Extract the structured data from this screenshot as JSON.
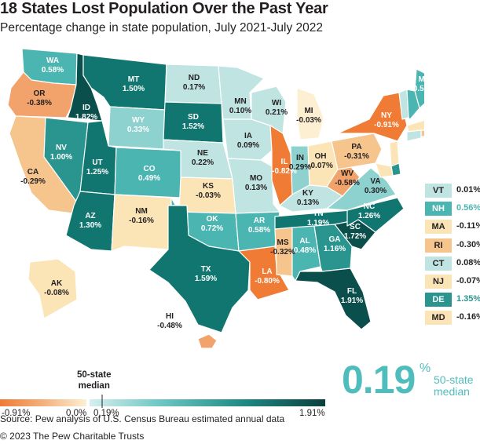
{
  "title": "18 States Lost Population Over the Past Year",
  "subtitle": "Percentage change in state population, July 2021-July 2022",
  "colors": {
    "orange_dark": "#ef7b34",
    "orange_mid": "#f2a36b",
    "orange_light": "#f6c48d",
    "cream": "#fbe5b7",
    "cream_pale": "#fdf0d2",
    "teal_pale": "#bfe4e2",
    "teal_light": "#8dd2cf",
    "teal_mid": "#4bb5b1",
    "teal": "#2a948f",
    "teal_dark": "#127670",
    "teal_darkest": "#0a4f4c",
    "median_accent": "#4fbdbb"
  },
  "states": [
    {
      "abbr": "WA",
      "value": "0.58%"
    },
    {
      "abbr": "OR",
      "value": "-0.38%"
    },
    {
      "abbr": "CA",
      "value": "-0.29%"
    },
    {
      "abbr": "ID",
      "value": "1.82%"
    },
    {
      "abbr": "MT",
      "value": "1.50%"
    },
    {
      "abbr": "NV",
      "value": "1.00%"
    },
    {
      "abbr": "UT",
      "value": "1.25%"
    },
    {
      "abbr": "WY",
      "value": "0.33%"
    },
    {
      "abbr": "AZ",
      "value": "1.30%"
    },
    {
      "abbr": "CO",
      "value": "0.49%"
    },
    {
      "abbr": "NM",
      "value": "-0.16%"
    },
    {
      "abbr": "ND",
      "value": "0.17%"
    },
    {
      "abbr": "SD",
      "value": "1.52%"
    },
    {
      "abbr": "NE",
      "value": "0.22%"
    },
    {
      "abbr": "KS",
      "value": "-0.03%"
    },
    {
      "abbr": "OK",
      "value": "0.72%"
    },
    {
      "abbr": "TX",
      "value": "1.59%"
    },
    {
      "abbr": "MN",
      "value": "0.10%"
    },
    {
      "abbr": "IA",
      "value": "0.09%"
    },
    {
      "abbr": "MO",
      "value": "0.13%"
    },
    {
      "abbr": "AR",
      "value": "0.58%"
    },
    {
      "abbr": "LA",
      "value": "-0.80%"
    },
    {
      "abbr": "WI",
      "value": "0.21%"
    },
    {
      "abbr": "IL",
      "value": "-0.82%"
    },
    {
      "abbr": "MI",
      "value": "-0.03%"
    },
    {
      "abbr": "IN",
      "value": "0.29%"
    },
    {
      "abbr": "OH",
      "value": "-0.07%"
    },
    {
      "abbr": "KY",
      "value": "0.13%"
    },
    {
      "abbr": "TN",
      "value": "1.19%"
    },
    {
      "abbr": "MS",
      "value": "-0.32%"
    },
    {
      "abbr": "AL",
      "value": "0.48%"
    },
    {
      "abbr": "GA",
      "value": "1.16%"
    },
    {
      "abbr": "FL",
      "value": "1.91%"
    },
    {
      "abbr": "SC",
      "value": "1.72%"
    },
    {
      "abbr": "NC",
      "value": "1.26%"
    },
    {
      "abbr": "VA",
      "value": "0.30%"
    },
    {
      "abbr": "WV",
      "value": "-0.58%"
    },
    {
      "abbr": "PA",
      "value": "-0.31%"
    },
    {
      "abbr": "NY",
      "value": "-0.91%"
    },
    {
      "abbr": "ME",
      "value": "0.59%"
    },
    {
      "abbr": "AK",
      "value": "-0.08%"
    },
    {
      "abbr": "HI",
      "value": "-0.48%"
    }
  ],
  "small_states": [
    {
      "abbr": "VT",
      "value": "0.01%"
    },
    {
      "abbr": "NH",
      "value": "0.56%"
    },
    {
      "abbr": "MA",
      "value": "-0.11%"
    },
    {
      "abbr": "RI",
      "value": "-0.30%"
    },
    {
      "abbr": "CT",
      "value": "0.08%"
    },
    {
      "abbr": "NJ",
      "value": "-0.07%"
    },
    {
      "abbr": "DE",
      "value": "1.35%"
    },
    {
      "abbr": "MD",
      "value": "-0.16%"
    }
  ],
  "legend": {
    "median_title_line1": "50-state",
    "median_title_line2": "median",
    "min_label": "-0.91%",
    "zero_label": "0.0%",
    "median_label": "0.19%",
    "max_label": "1.91%"
  },
  "median_callout": {
    "value": "0.19",
    "pct": "%",
    "label_line1": "50-state",
    "label_line2": "median"
  },
  "source": "Source: Pew analysis of U.S. Census Bureau estimated annual data",
  "copyright": "© 2023 The Pew Charitable Trusts"
}
